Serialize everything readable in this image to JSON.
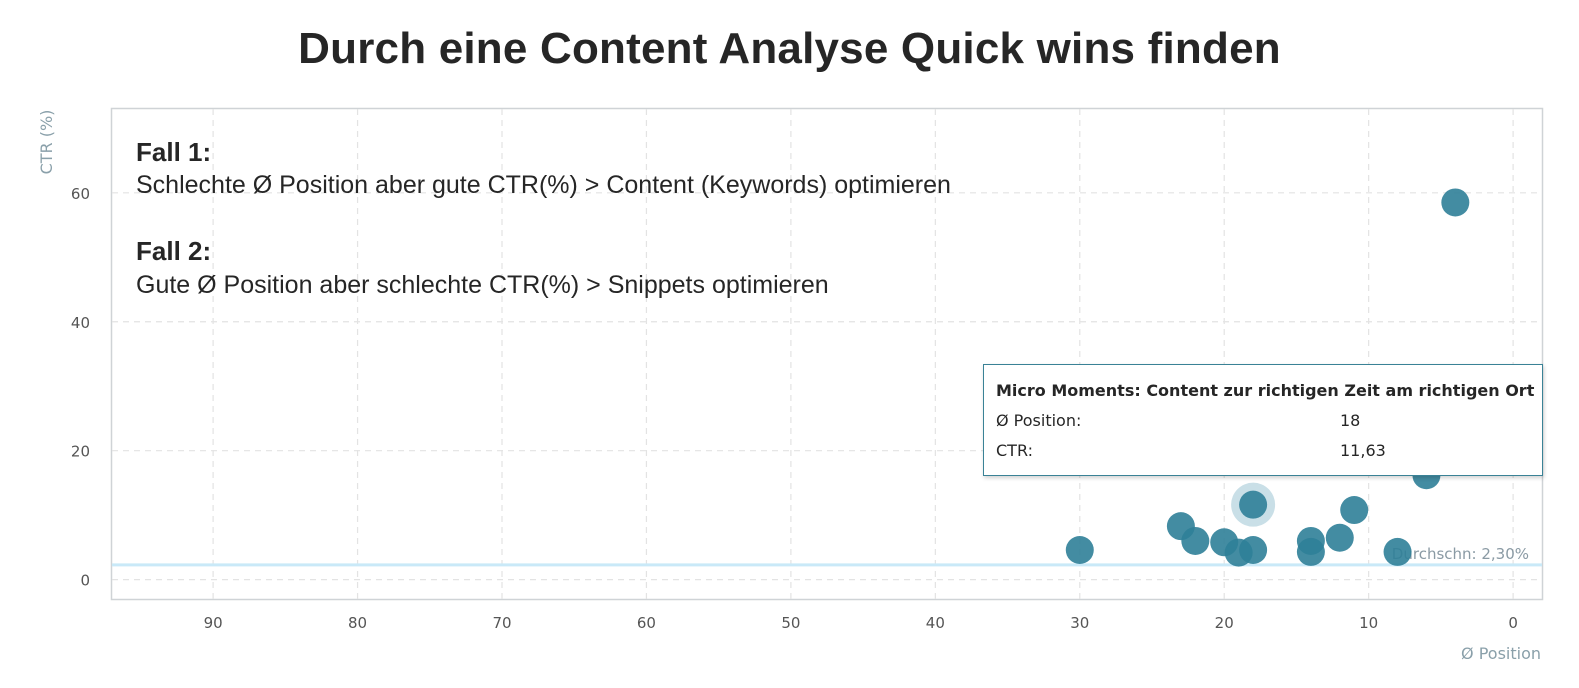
{
  "title": "Durch eine Content Analyse Quick wins finden",
  "notes": {
    "case1_head": "Fall 1:",
    "case1_text": "Schlechte Ø Position aber gute CTR(%) > Content (Keywords) optimieren",
    "case2_head": "Fall 2:",
    "case2_text": "Gute Ø Position aber schlechte CTR(%) > Snippets optimieren"
  },
  "tooltip": {
    "title": "Micro Moments: Content zur richtigen Zeit am richtigen Ort",
    "position_label": "Ø Position:",
    "position_value": "18",
    "ctr_label": "CTR:",
    "ctr_value": "11,63"
  },
  "chart_data": {
    "type": "scatter",
    "title": "Durch eine Content Analyse Quick wins finden",
    "xlabel": "Ø Position",
    "ylabel": "CTR (%)",
    "xlim": [
      97,
      -2
    ],
    "ylim": [
      -3,
      73
    ],
    "x_reversed": true,
    "x_ticks": [
      90,
      80,
      70,
      60,
      50,
      40,
      30,
      20,
      10,
      0
    ],
    "y_ticks": [
      0,
      20,
      40,
      60
    ],
    "grid": true,
    "average_line": {
      "value": 2.3,
      "label": "Durchschn: 2,30%"
    },
    "colors": {
      "marker": "#2f7f98",
      "highlight_halo": "#c3dbe4",
      "average_line": "#c9e9f8",
      "tooltip_border": "#3a8296"
    },
    "highlighted_index": 2,
    "points": [
      {
        "x": 30,
        "y": 4.6
      },
      {
        "x": 23,
        "y": 8.3
      },
      {
        "x": 18,
        "y": 11.63
      },
      {
        "x": 22,
        "y": 6.0
      },
      {
        "x": 20,
        "y": 5.8
      },
      {
        "x": 19,
        "y": 4.2
      },
      {
        "x": 18,
        "y": 4.6
      },
      {
        "x": 14,
        "y": 6.0
      },
      {
        "x": 14,
        "y": 4.3
      },
      {
        "x": 12,
        "y": 6.5
      },
      {
        "x": 11,
        "y": 10.8
      },
      {
        "x": 8,
        "y": 4.3
      },
      {
        "x": 6,
        "y": 16.2
      },
      {
        "x": 4,
        "y": 58.5
      }
    ]
  }
}
